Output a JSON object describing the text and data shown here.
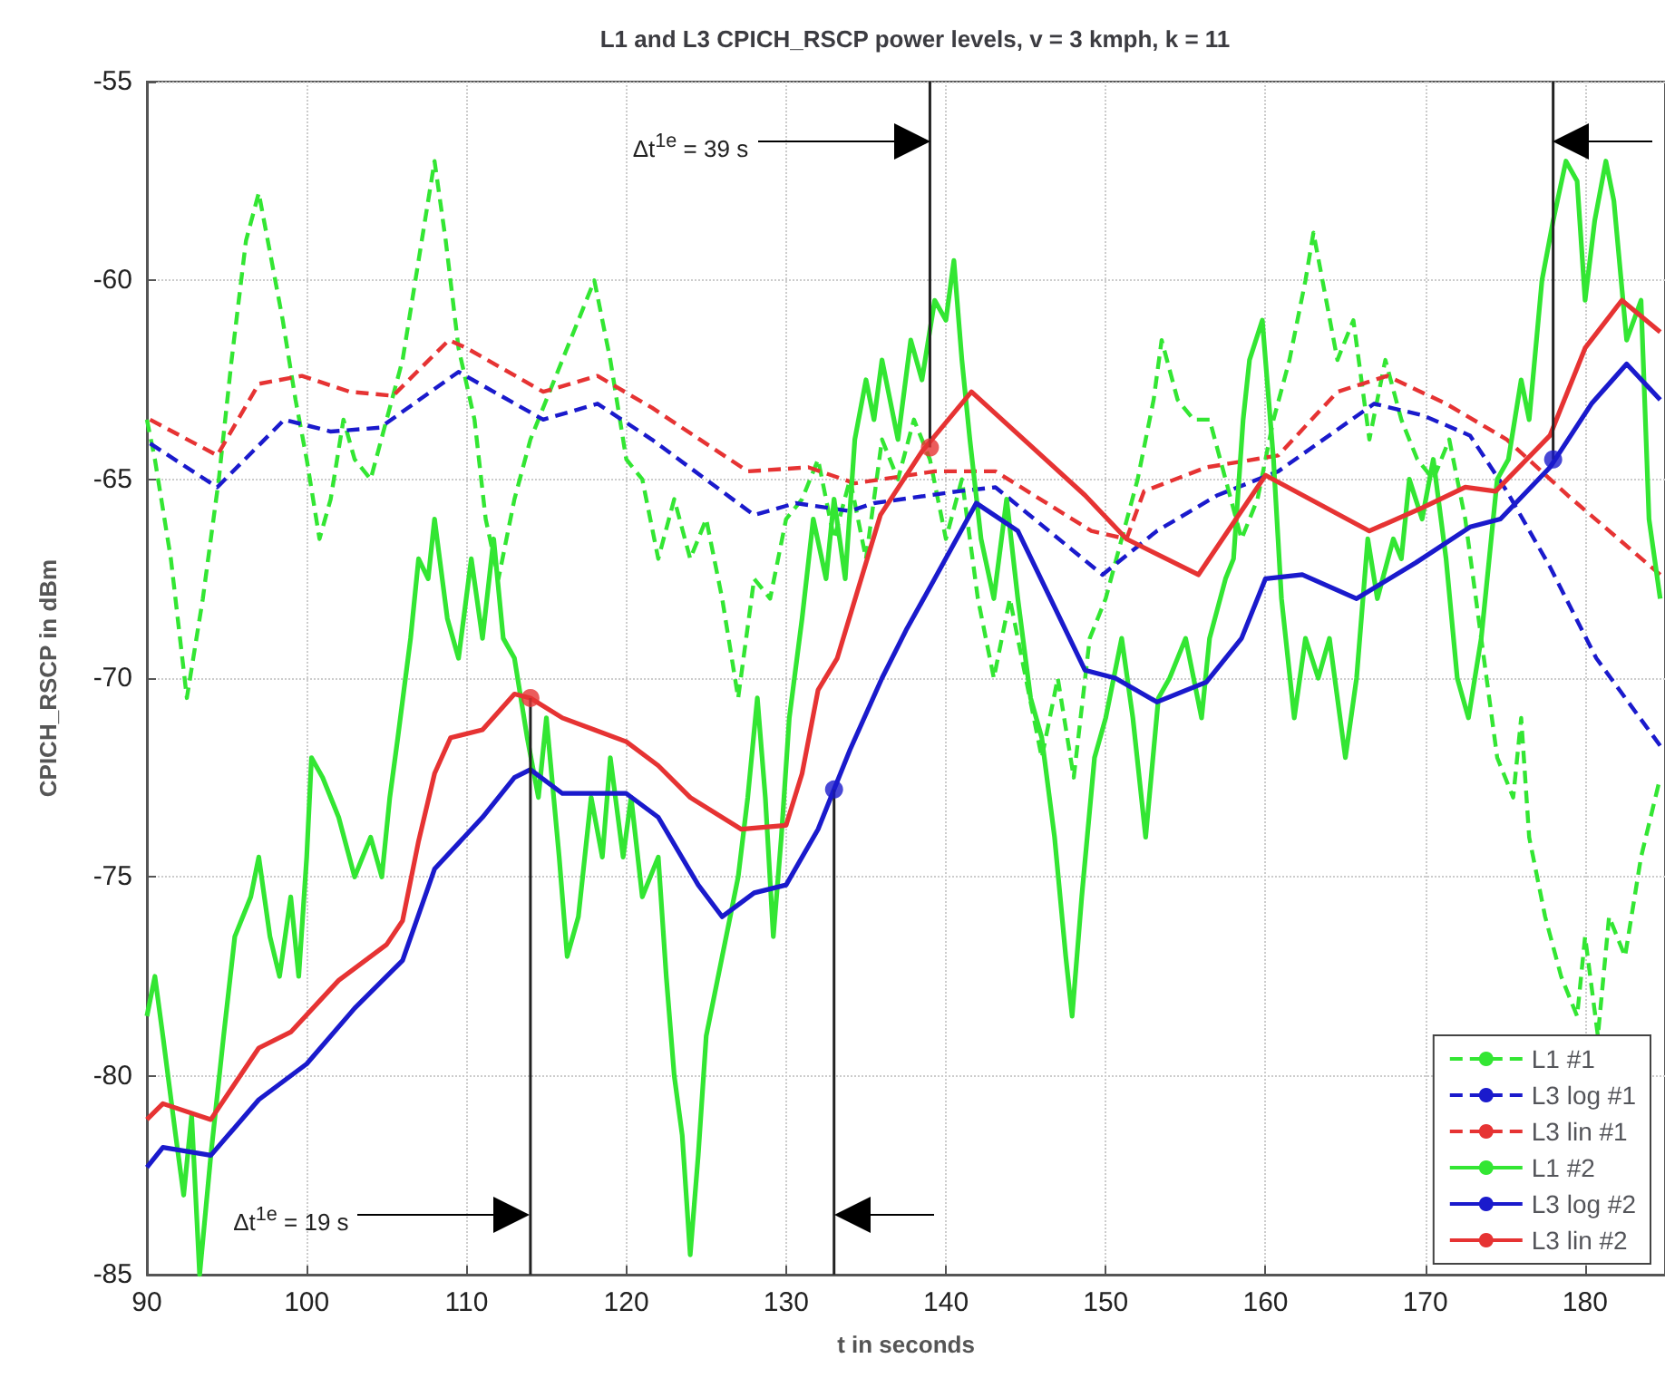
{
  "chart_data": {
    "type": "line",
    "title": "L1 and L3 CPICH_RSCP power levels, v = 3 kmph, k = 11",
    "xlabel": "t in seconds",
    "ylabel": "CPICH_RSCP in dBm",
    "xlim": [
      90,
      185
    ],
    "xticks": [
      90,
      100,
      110,
      120,
      130,
      140,
      150,
      160,
      170,
      180
    ],
    "ylim": [
      -85,
      -55
    ],
    "yticks": [
      -85,
      -80,
      -75,
      -70,
      -65,
      -60,
      -55
    ],
    "grid": true,
    "legend": "bottom right",
    "series": [
      {
        "name": "L1 #1",
        "color": "#33e633",
        "line_style": "dashed",
        "x": [
          90,
          90.5,
          91.5,
          92.5,
          93.5,
          94.5,
          95.3,
          96.2,
          97,
          97.8,
          98.5,
          99.3,
          100,
          100.8,
          101.5,
          102.3,
          103,
          104,
          105,
          106,
          107,
          108,
          108.7,
          109.5,
          110.5,
          111.2,
          112,
          113,
          114,
          115.5,
          117,
          118,
          119,
          120,
          121,
          122,
          123,
          124,
          125,
          126,
          127,
          128,
          129,
          130,
          131,
          132,
          133,
          134,
          135,
          136,
          137,
          138,
          139,
          140,
          141,
          142,
          143,
          144,
          145,
          146,
          147,
          148,
          149,
          150,
          151,
          152,
          153,
          153.5,
          154.5,
          155.5,
          156.5,
          157.5,
          158.5,
          159.5,
          160.5,
          161.5,
          162.5,
          163,
          163.8,
          164.5,
          165.5,
          166.5,
          167.5,
          168.5,
          169.5,
          170.5,
          171.5,
          172.5,
          173.5,
          174.5,
          175.5,
          176,
          176.5,
          177.5,
          178.5,
          179.5,
          180,
          180.8,
          181.5,
          182.5,
          183.5,
          184.7
        ],
        "values": [
          -63.5,
          -64.5,
          -67,
          -70.5,
          -68,
          -65,
          -62,
          -59,
          -57.8,
          -59.5,
          -61,
          -63,
          -64.5,
          -66.5,
          -65.5,
          -63.5,
          -64.5,
          -65,
          -63.5,
          -62,
          -59.5,
          -57,
          -59,
          -61.7,
          -63.5,
          -66,
          -67.5,
          -65.5,
          -64,
          -62.5,
          -61,
          -60,
          -62,
          -64.5,
          -65,
          -67,
          -65.5,
          -67,
          -66,
          -68,
          -70.5,
          -67.5,
          -68,
          -66,
          -65.5,
          -64.5,
          -66.5,
          -65,
          -67,
          -64,
          -65,
          -63.5,
          -64.5,
          -66.5,
          -65,
          -68,
          -70,
          -68,
          -70,
          -72,
          -70,
          -72.5,
          -69,
          -68,
          -66.5,
          -65,
          -63,
          -61.5,
          -63,
          -63.5,
          -63.5,
          -65,
          -66.5,
          -65.5,
          -63.5,
          -62,
          -60,
          -58.8,
          -60.5,
          -62,
          -61,
          -64,
          -62,
          -63.5,
          -64.5,
          -65,
          -64,
          -66,
          -69,
          -72,
          -73,
          -71,
          -74,
          -76,
          -77.5,
          -78.5,
          -76.5,
          -79,
          -76,
          -77,
          -74.5,
          -72.5
        ]
      },
      {
        "name": "L3 log #1",
        "color": "#1a1acc",
        "line_style": "dashed",
        "x": [
          90.2,
          94.4,
          98.6,
          101.5,
          104.6,
          109.5,
          114.8,
          118.2,
          121.6,
          128,
          130.6,
          134,
          135.5,
          140.8,
          143.1,
          149.8,
          153.2,
          157,
          160.8,
          166.8,
          169.9,
          172.8,
          175.1,
          177.8,
          180.7,
          184.7
        ],
        "values": [
          -64.1,
          -65.2,
          -63.5,
          -63.8,
          -63.7,
          -62.3,
          -63.5,
          -63.1,
          -64,
          -65.9,
          -65.6,
          -65.8,
          -65.6,
          -65.3,
          -65.2,
          -67.4,
          -66.3,
          -65.4,
          -64.8,
          -63.1,
          -63.4,
          -63.9,
          -65.3,
          -67.2,
          -69.5,
          -71.7
        ]
      },
      {
        "name": "L3 lin #1",
        "color": "#e63333",
        "line_style": "dashed",
        "x": [
          90.2,
          94.4,
          97,
          99.7,
          102.7,
          105.4,
          108.9,
          110,
          114.8,
          118.2,
          121.6,
          127.6,
          131.4,
          134.3,
          139.3,
          143.1,
          149.1,
          151.3,
          152.4,
          156.3,
          160.8,
          164.5,
          167.6,
          171.3,
          175.1,
          178.9,
          184.7
        ],
        "values": [
          -63.5,
          -64.4,
          -62.6,
          -62.4,
          -62.8,
          -62.9,
          -61.5,
          -61.7,
          -62.8,
          -62.4,
          -63.2,
          -64.8,
          -64.7,
          -65.1,
          -64.8,
          -64.8,
          -66.3,
          -66.5,
          -65.3,
          -64.7,
          -64.4,
          -62.8,
          -62.4,
          -63.1,
          -64,
          -65.4,
          -67.4
        ]
      },
      {
        "name": "L1 #2",
        "color": "#33e633",
        "line_style": "solid",
        "x": [
          90,
          90.5,
          91,
          91.8,
          92.3,
          92.8,
          93.3,
          94,
          94.8,
          95.5,
          96.5,
          97,
          97.7,
          98.3,
          99,
          99.5,
          100,
          100.3,
          101,
          102,
          103,
          104,
          104.7,
          105.2,
          105.7,
          106.5,
          107,
          107.6,
          108,
          108.8,
          109.5,
          110.3,
          111,
          111.7,
          112.3,
          113,
          113.8,
          114.5,
          115,
          115.8,
          116.3,
          117,
          117.8,
          118.5,
          119,
          119.8,
          120.3,
          121,
          122,
          122.5,
          123,
          123.5,
          124,
          124.5,
          125,
          126,
          127,
          127.6,
          128.2,
          128.7,
          129.2,
          129.7,
          130.2,
          131,
          131.7,
          132.5,
          133,
          133.7,
          134.3,
          135,
          135.5,
          136,
          137,
          137.8,
          138.5,
          139.3,
          140,
          140.5,
          141,
          141.5,
          142.2,
          143,
          143.8,
          144.5,
          145.3,
          146,
          146.8,
          147.5,
          147.9,
          148.5,
          149.3,
          150,
          151,
          151.7,
          152.5,
          153.3,
          154,
          155,
          156,
          156.5,
          157.5,
          158,
          158.6,
          159,
          159.8,
          160.5,
          161,
          161.8,
          162.5,
          163.3,
          164,
          165,
          165.7,
          166.4,
          167,
          168,
          168.5,
          169,
          169.8,
          170.5,
          171.3,
          172,
          172.7,
          173.5,
          174.5,
          175.2,
          176,
          176.5,
          177.3,
          178,
          178.8,
          179.5,
          180,
          180.6,
          181.3,
          181.8,
          182.6,
          183.5,
          184,
          184.7
        ],
        "values": [
          -78.5,
          -77.5,
          -79,
          -81.5,
          -83,
          -81,
          -85,
          -82,
          -79,
          -76.5,
          -75.5,
          -74.5,
          -76.5,
          -77.5,
          -75.5,
          -77.5,
          -74.5,
          -72,
          -72.5,
          -73.5,
          -75,
          -74,
          -75,
          -73,
          -71.5,
          -69,
          -67,
          -67.5,
          -66,
          -68.5,
          -69.5,
          -67,
          -69,
          -66.5,
          -69,
          -69.5,
          -71.5,
          -73,
          -71,
          -74.5,
          -77,
          -76,
          -73,
          -74.5,
          -72,
          -74.5,
          -73,
          -75.5,
          -74.5,
          -77.5,
          -80,
          -81.5,
          -84.5,
          -82,
          -79,
          -77,
          -75,
          -73,
          -70.5,
          -73,
          -76.5,
          -74,
          -71,
          -68.5,
          -66,
          -67.5,
          -65.5,
          -67.5,
          -64,
          -62.5,
          -63.5,
          -62,
          -64,
          -61.5,
          -62.5,
          -60.5,
          -61,
          -59.5,
          -62,
          -64,
          -66.5,
          -68,
          -65.5,
          -68,
          -70.5,
          -71.5,
          -74,
          -77,
          -78.5,
          -75.5,
          -72,
          -71,
          -69,
          -71,
          -74,
          -70.5,
          -70,
          -69,
          -71,
          -69,
          -67.5,
          -67,
          -63.5,
          -62,
          -61,
          -64.5,
          -68,
          -71,
          -69,
          -70,
          -69,
          -72,
          -70,
          -66.5,
          -68,
          -66.5,
          -67,
          -65,
          -66,
          -64.5,
          -67,
          -70,
          -71,
          -69,
          -65,
          -64.5,
          -62.5,
          -63.5,
          -60,
          -58.5,
          -57,
          -57.5,
          -60.5,
          -58.5,
          -57,
          -58,
          -61.5,
          -60.5,
          -66,
          -68
        ]
      },
      {
        "name": "L3 log #2",
        "color": "#1a1acc",
        "line_style": "solid",
        "x": [
          90,
          91,
          94,
          97,
          100,
          103,
          106,
          108,
          111,
          113,
          114,
          116,
          119,
          120,
          122,
          124.5,
          126,
          128,
          130,
          132,
          133,
          134,
          136,
          137.5,
          139.3,
          141.9,
          144.5,
          148.7,
          150.6,
          153.2,
          156.3,
          158.5,
          160,
          162.3,
          165.7,
          169.4,
          172.8,
          174.7,
          177.8,
          180.4,
          182.6,
          184.7
        ],
        "values": [
          -82.3,
          -81.8,
          -82,
          -80.6,
          -79.7,
          -78.3,
          -77.1,
          -74.8,
          -73.5,
          -72.5,
          -72.3,
          -72.9,
          -72.9,
          -72.9,
          -73.5,
          -75.2,
          -76,
          -75.4,
          -75.2,
          -73.8,
          -72.8,
          -71.8,
          -70,
          -68.8,
          -67.5,
          -65.6,
          -66.3,
          -69.8,
          -70,
          -70.6,
          -70.1,
          -69,
          -67.5,
          -67.4,
          -68,
          -67.1,
          -66.2,
          -66,
          -64.7,
          -63.1,
          -62.1,
          -63
        ]
      },
      {
        "name": "L3 lin #2",
        "color": "#e63333",
        "line_style": "solid",
        "x": [
          90,
          91,
          94,
          97,
          99,
          102,
          105,
          106,
          107,
          108,
          109,
          111,
          113,
          114,
          116,
          118,
          120,
          122,
          124,
          127.2,
          130,
          131,
          132,
          133.2,
          135.9,
          138.5,
          141.6,
          148.7,
          151.3,
          155.8,
          160,
          166.5,
          169.9,
          172.5,
          174.4,
          177.8,
          180,
          182.3,
          184.7
        ],
        "values": [
          -81.1,
          -80.7,
          -81.1,
          -79.3,
          -78.9,
          -77.6,
          -76.7,
          -76.1,
          -74.1,
          -72.4,
          -71.5,
          -71.3,
          -70.4,
          -70.5,
          -71,
          -71.3,
          -71.6,
          -72.2,
          -73,
          -73.8,
          -73.7,
          -72.4,
          -70.3,
          -69.5,
          -65.9,
          -64.3,
          -62.8,
          -65.4,
          -66.5,
          -67.4,
          -64.9,
          -66.3,
          -65.7,
          -65.2,
          -65.3,
          -63.9,
          -61.7,
          -60.5,
          -61.3
        ]
      },
      {
        "type": "line",
        "color": "#222222",
        "line_style": "solid",
        "x": [
          114,
          114
        ],
        "values": [
          -70.5,
          -85
        ]
      },
      {
        "type": "line",
        "color": "#222222",
        "line_style": "solid",
        "x": [
          133,
          133
        ],
        "values": [
          -72.8,
          -85
        ]
      },
      {
        "type": "line",
        "color": "#222222",
        "line_style": "solid",
        "x": [
          139,
          139
        ],
        "values": [
          -64.2,
          -55
        ]
      },
      {
        "type": "line",
        "color": "#222222",
        "line_style": "solid",
        "x": [
          178,
          178
        ],
        "values": [
          -64.5,
          -55
        ]
      },
      {
        "type": "scatter",
        "x": [
          114,
          133,
          139,
          178
        ],
        "values": [
          -70.5,
          -72.8,
          -64.2,
          -64.5
        ],
        "colors": [
          "#e63333",
          "#1a1acc",
          "#e63333",
          "#1a1acc"
        ]
      }
    ],
    "annotations": [
      "Δt$^{1e}$ = 19 s",
      "Δt$^{1e}$ = 39 s"
    ]
  }
}
